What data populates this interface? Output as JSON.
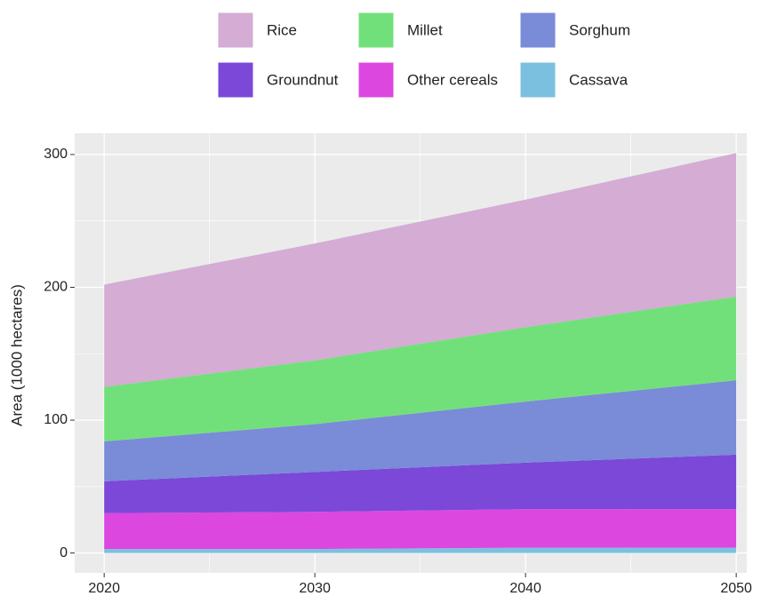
{
  "chart_data": {
    "type": "stacked_area",
    "y_label": "Area (1000 hectares)",
    "x": [
      2020,
      2030,
      2040,
      2050
    ],
    "series": [
      {
        "name": "Rice",
        "color": "#d4acd4",
        "values": [
          77,
          88,
          96,
          108
        ]
      },
      {
        "name": "Millet",
        "color": "#72e07a",
        "values": [
          41,
          48,
          56,
          63
        ]
      },
      {
        "name": "Sorghum",
        "color": "#7a8bd8",
        "values": [
          30,
          36,
          46,
          56
        ]
      },
      {
        "name": "Groundnut",
        "color": "#7b48d8",
        "values": [
          24,
          30,
          35,
          41
        ]
      },
      {
        "name": "Other cereals",
        "color": "#dc47e0",
        "values": [
          27,
          28,
          29,
          29
        ]
      },
      {
        "name": "Cassava",
        "color": "#7cc0e0",
        "values": [
          3,
          3,
          4,
          4
        ]
      }
    ],
    "xlim": [
      2018.6,
      2050.5
    ],
    "xticks": [
      2020,
      2030,
      2040,
      2050
    ],
    "ylim": [
      -15,
      316
    ],
    "yticks": [
      0,
      100,
      200,
      300
    ],
    "grid": true,
    "legend": "top"
  }
}
